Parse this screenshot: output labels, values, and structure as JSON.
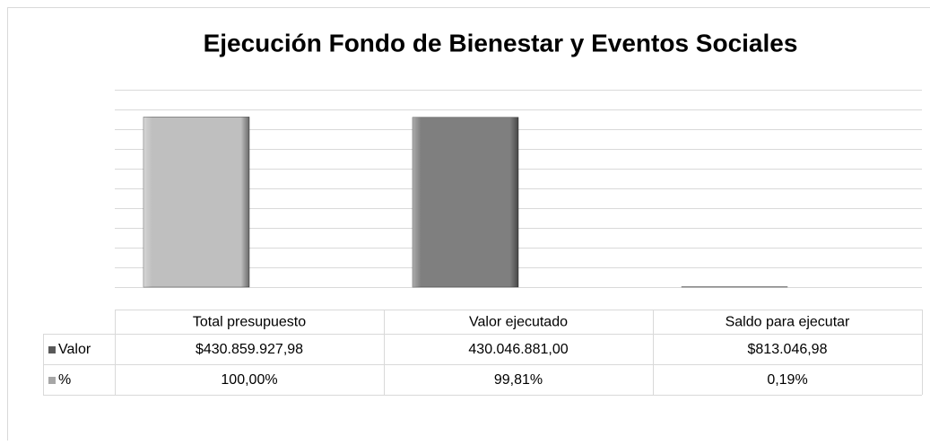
{
  "chart_data": {
    "type": "bar",
    "title": "Ejecución Fondo de Bienestar y Eventos Sociales",
    "categories": [
      "Total presupuesto",
      "Valor ejecutado",
      "Saldo para ejecutar"
    ],
    "series": [
      {
        "name": "Valor",
        "color": "#595959",
        "colors": [
          "#bfbfbf",
          "#7f7f7f",
          "#7f7f7f"
        ],
        "values": [
          430859927.98,
          430046881.0,
          813046.98
        ],
        "value_labels": [
          "$430.859.927,98",
          "430.046.881,00",
          "$813.046,98"
        ]
      },
      {
        "name": "%",
        "color": "#a6a6a6",
        "values": [
          100,
          99.81,
          0.19
        ],
        "value_labels": [
          "100,00%",
          "99,81%",
          "0,19%"
        ]
      }
    ],
    "ylim": [
      0,
      500000000
    ],
    "yticks": [
      0,
      50000000,
      100000000,
      150000000,
      200000000,
      250000000,
      300000000,
      350000000,
      400000000,
      450000000,
      500000000
    ],
    "grid": true
  }
}
